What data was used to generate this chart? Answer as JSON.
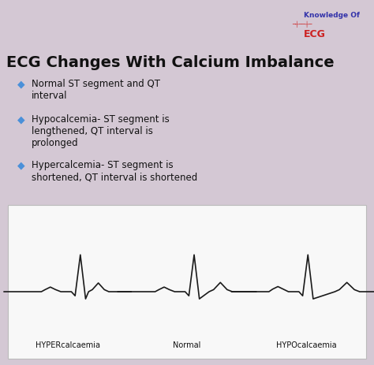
{
  "title": "ECG Changes With Calcium Imbalance",
  "title_fontsize": 14,
  "title_color": "#111111",
  "bg_color": "#d4c8d4",
  "ecg_box_color": "#f8f8f8",
  "bullet_color": "#4a90d9",
  "bullet_points": [
    "Normal ST segment and QT\ninterval",
    "Hypocalcemia- ST segment is\nlengthened, QT interval is\nprolonged",
    "Hypercalcemia- ST segment is\nshortened, QT interval is shortened"
  ],
  "bullet_fontsize": 8.5,
  "ecg_labels": [
    "HYPERcalcaemia",
    "Normal",
    "HYPOcalcaemia"
  ],
  "ecg_label_fontsize": 7,
  "logo_text1": "Knowledge Of",
  "logo_text2": "ECG",
  "logo_color1": "#3333aa",
  "logo_color2": "#cc2222"
}
